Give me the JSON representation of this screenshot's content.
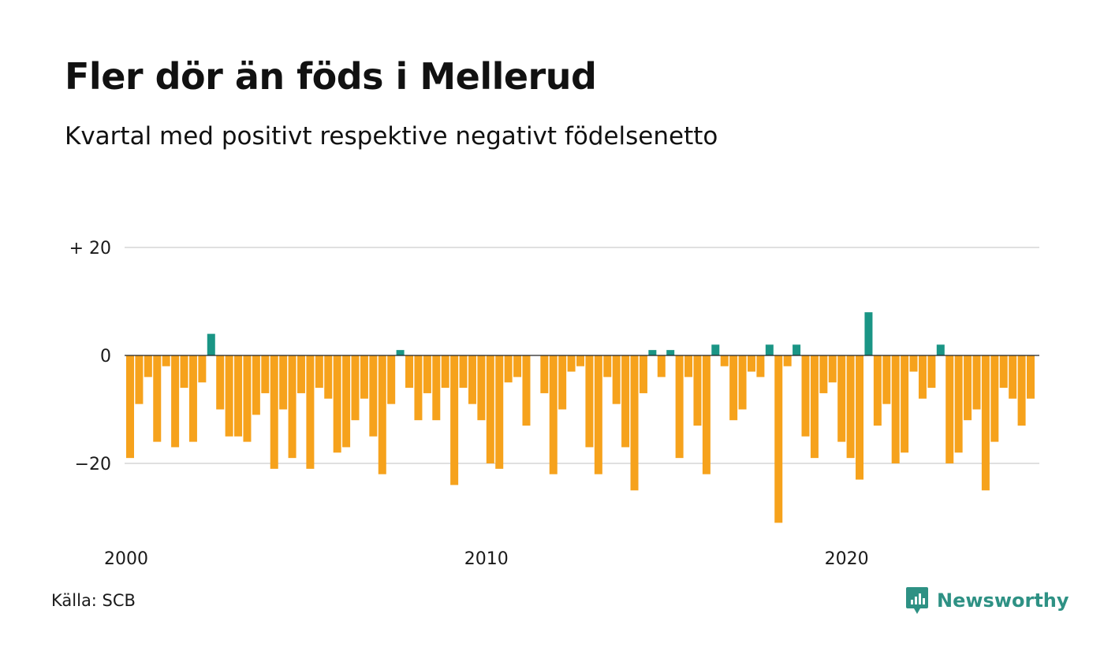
{
  "title": "Fler dör än föds i Mellerud",
  "subtitle": "Kvartal med positivt respektive negativt födelsenetto",
  "source": "Källa: SCB",
  "brand": {
    "name": "Newsworthy",
    "icon": "chart-bubble-icon"
  },
  "colors": {
    "negative": "#f6a21c",
    "positive": "#1a9585",
    "brand": "#2e9184",
    "grid": "#e0e0e0",
    "zero": "#222222"
  },
  "chart_data": {
    "type": "bar",
    "title": "Fler dör än föds i Mellerud",
    "subtitle": "Kvartal med positivt respektive negativt födelsenetto",
    "xlabel": "",
    "ylabel": "",
    "ylim": [
      -32,
      30
    ],
    "y_ticks": [
      {
        "value": 20,
        "label": "+ 20"
      },
      {
        "value": 0,
        "label": "0"
      },
      {
        "value": -20,
        "label": "−20"
      }
    ],
    "x_ticks": [
      {
        "value": 2000,
        "label": "2000"
      },
      {
        "value": 2010,
        "label": "2010"
      },
      {
        "value": 2020,
        "label": "2020"
      }
    ],
    "x_start": 2000,
    "periods_per_year": 4,
    "grid": true,
    "legend": "none",
    "series": [
      {
        "values": [
          -19,
          -9,
          -4,
          -16,
          -2,
          -17,
          -6,
          -16,
          -5,
          4,
          -10,
          -15,
          -15,
          -16,
          -11,
          -7,
          -21,
          -10,
          -19,
          -7,
          -21,
          -6,
          -8,
          -18,
          -17,
          -12,
          -8,
          -15,
          -22,
          -9,
          1,
          -6,
          -12,
          -7,
          -12,
          -6,
          -24,
          -6,
          -9,
          -12,
          -20,
          -21,
          -5,
          -4,
          -13,
          0,
          -7,
          -22,
          -10,
          -3,
          -2,
          -17,
          -22,
          -4,
          -9,
          -17,
          -25,
          -7,
          1,
          -4,
          1,
          -19,
          -4,
          -13,
          -22,
          2,
          -2,
          -12,
          -10,
          -3,
          -4,
          2,
          -31,
          -2,
          2,
          -15,
          -19,
          -7,
          -5,
          -16,
          -19,
          -23,
          8,
          -13,
          -9,
          -20,
          -18,
          -3,
          -8,
          -6,
          2,
          -20,
          -18,
          -12,
          -10,
          -25,
          -16,
          -6,
          -8,
          -13,
          -8
        ]
      }
    ]
  }
}
